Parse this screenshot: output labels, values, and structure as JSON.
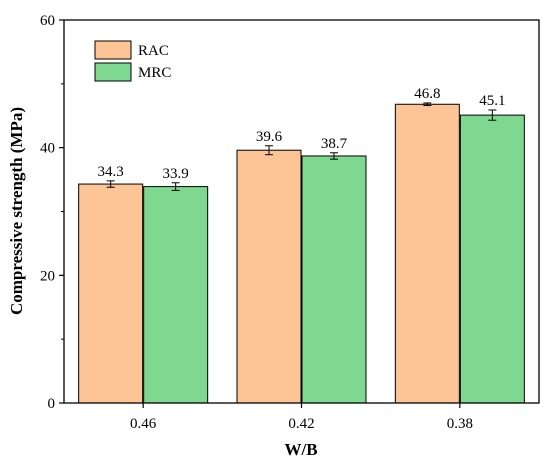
{
  "chart_data": {
    "type": "bar",
    "xlabel": "W/B",
    "ylabel": "Compressive strength (MPa)",
    "categories": [
      "0.46",
      "0.42",
      "0.38"
    ],
    "ylim": [
      0,
      60
    ],
    "yticks": [
      "0",
      "20",
      "40",
      "60"
    ],
    "legend_position": "top-left",
    "series": [
      {
        "name": "RAC",
        "color": "#fdc596",
        "values": [
          34.3,
          39.6,
          46.8
        ],
        "errors": [
          0.5,
          0.7,
          0.2
        ],
        "labels": [
          "34.3",
          "39.6",
          "46.8"
        ]
      },
      {
        "name": "MRC",
        "color": "#7fd88f",
        "values": [
          33.9,
          38.7,
          45.1
        ],
        "errors": [
          0.6,
          0.5,
          0.8
        ],
        "labels": [
          "33.9",
          "38.7",
          "45.1"
        ]
      }
    ]
  }
}
